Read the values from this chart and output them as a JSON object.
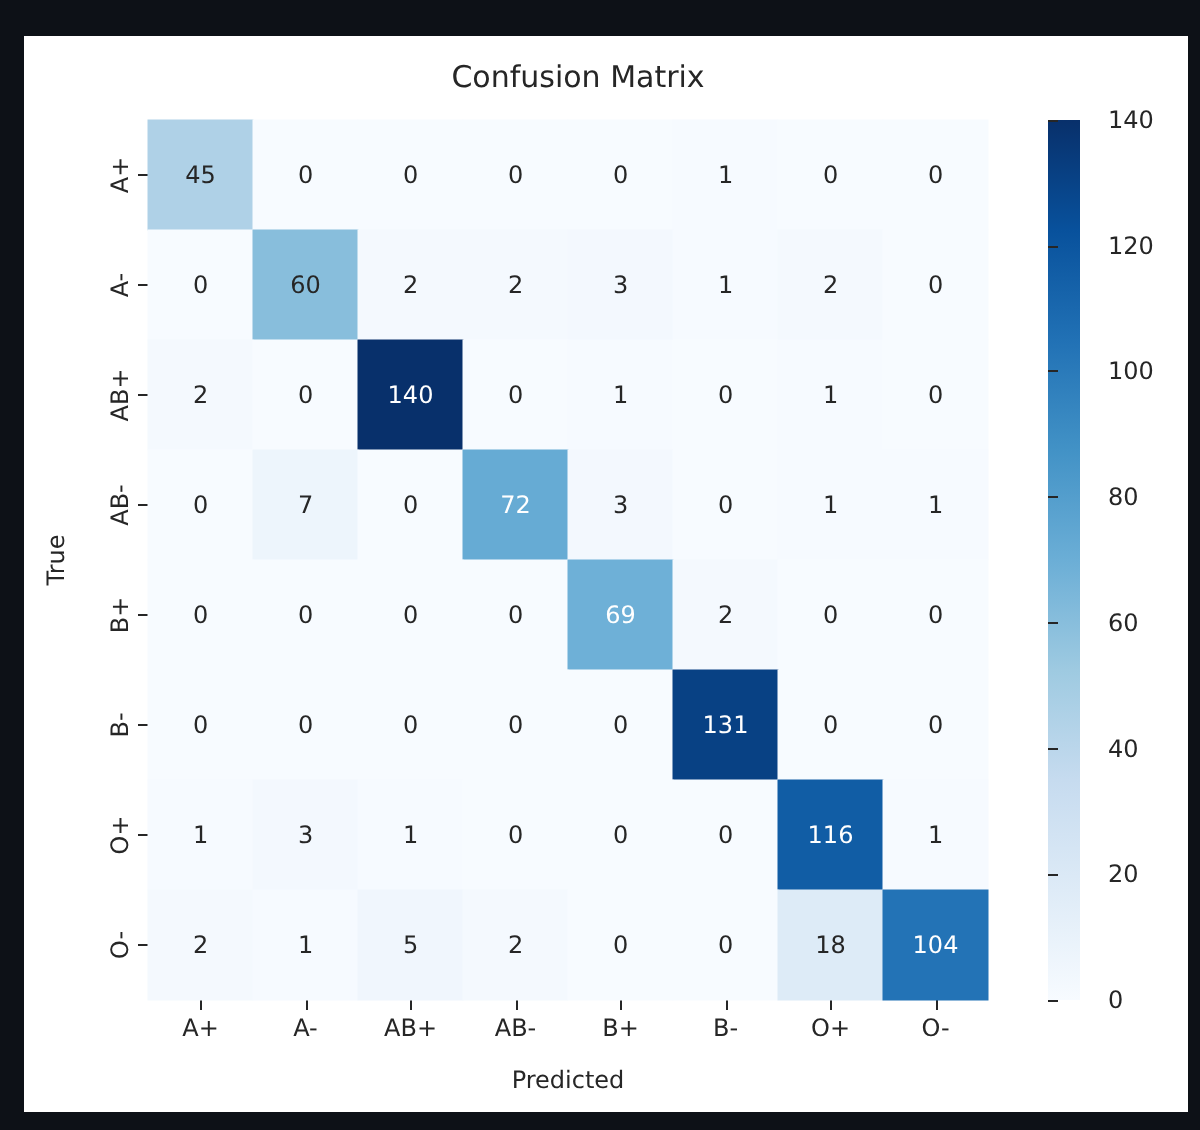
{
  "chart_data": {
    "type": "heatmap",
    "title": "Confusion Matrix",
    "xlabel": "Predicted",
    "ylabel": "True",
    "categories": [
      "A+",
      "A-",
      "AB+",
      "AB-",
      "B+",
      "B-",
      "O+",
      "O-"
    ],
    "y_categories": [
      "A+",
      "A-",
      "AB+",
      "AB-",
      "B+",
      "B-",
      "O+",
      "O-"
    ],
    "cells": [
      [
        45,
        0,
        0,
        0,
        0,
        1,
        0,
        0
      ],
      [
        0,
        60,
        2,
        2,
        3,
        1,
        2,
        0
      ],
      [
        2,
        0,
        140,
        0,
        1,
        0,
        1,
        0
      ],
      [
        0,
        7,
        0,
        72,
        3,
        0,
        1,
        1
      ],
      [
        0,
        0,
        0,
        0,
        69,
        2,
        0,
        0
      ],
      [
        0,
        0,
        0,
        0,
        0,
        131,
        0,
        0
      ],
      [
        1,
        3,
        1,
        0,
        0,
        0,
        116,
        1
      ],
      [
        2,
        1,
        5,
        2,
        0,
        0,
        18,
        104
      ]
    ],
    "clim": [
      0,
      140
    ],
    "cticks": [
      0,
      20,
      40,
      60,
      80,
      100,
      120,
      140
    ],
    "data_labels": true
  }
}
